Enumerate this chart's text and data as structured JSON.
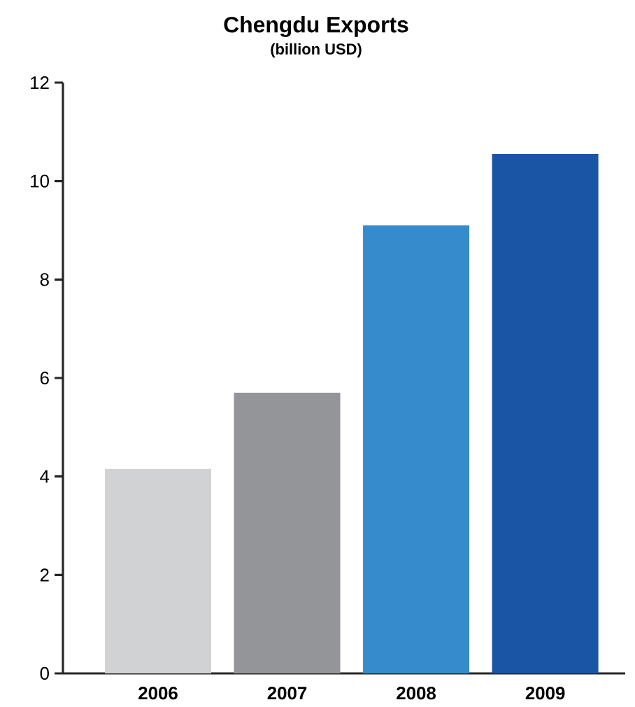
{
  "chart_data": {
    "type": "bar",
    "title": "Chengdu Exports",
    "subtitle": "(billion USD)",
    "categories": [
      "2006",
      "2007",
      "2008",
      "2009"
    ],
    "values": [
      4.15,
      5.7,
      9.1,
      10.55
    ],
    "colors": [
      "#d1d2d4",
      "#939598",
      "#358bcb",
      "#1a55a5"
    ],
    "ylim": [
      0,
      12
    ],
    "yticks": [
      0,
      2,
      4,
      6,
      8,
      10,
      12
    ],
    "grid": false
  }
}
